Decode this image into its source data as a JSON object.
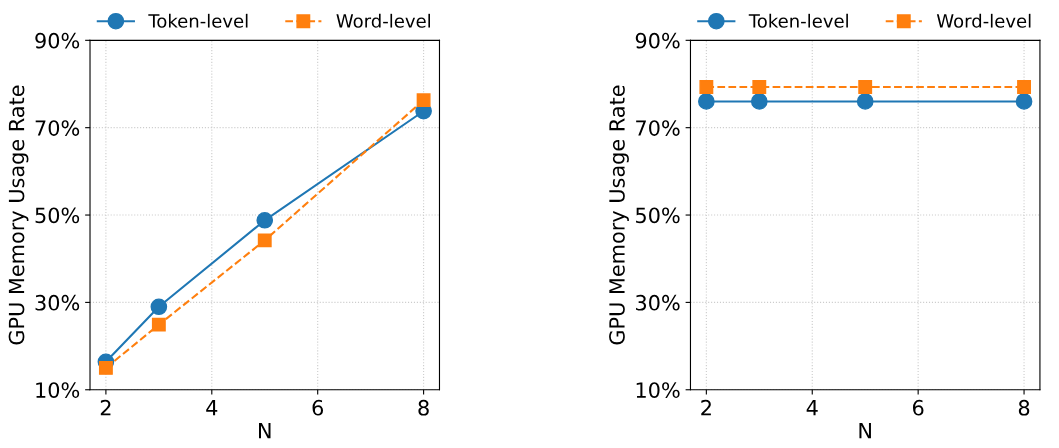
{
  "chart_data": [
    {
      "type": "line",
      "xlabel": "N",
      "ylabel": "GPU Memory Usage Rate",
      "x": [
        2,
        3,
        5,
        8
      ],
      "series": [
        {
          "name": "Token-level",
          "color": "#1f77b4",
          "values": [
            16.4,
            29,
            48.8,
            73.8
          ],
          "marker": "circle",
          "line_style": "solid"
        },
        {
          "name": "Word-level",
          "color": "#ff7f0e",
          "values": [
            15,
            24.9,
            44.2,
            76.3
          ],
          "marker": "square",
          "line_style": "dashed"
        }
      ],
      "xlim": [
        1.7,
        8.3
      ],
      "xticks": [
        2,
        4,
        6,
        8
      ],
      "ylim": [
        10,
        90
      ],
      "yticks": [
        {
          "value": 10,
          "label": "10%"
        },
        {
          "value": 30,
          "label": "30%"
        },
        {
          "value": 50,
          "label": "50%"
        },
        {
          "value": 70,
          "label": "70%"
        },
        {
          "value": 90,
          "label": "90%"
        }
      ],
      "grid": true,
      "legend": "top"
    },
    {
      "type": "line",
      "xlabel": "N",
      "ylabel": "GPU Memory Usage Rate",
      "x": [
        2,
        3,
        5,
        8
      ],
      "series": [
        {
          "name": "Token-level",
          "color": "#1f77b4",
          "values": [
            76,
            76,
            76,
            76
          ],
          "marker": "circle",
          "line_style": "solid"
        },
        {
          "name": "Word-level",
          "color": "#ff7f0e",
          "values": [
            79.3,
            79.3,
            79.3,
            79.3
          ],
          "marker": "square",
          "line_style": "dashed"
        }
      ],
      "xlim": [
        1.7,
        8.3
      ],
      "xticks": [
        2,
        4,
        6,
        8
      ],
      "ylim": [
        10,
        90
      ],
      "yticks": [
        {
          "value": 10,
          "label": "10%"
        },
        {
          "value": 30,
          "label": "30%"
        },
        {
          "value": 50,
          "label": "50%"
        },
        {
          "value": 70,
          "label": "70%"
        },
        {
          "value": 90,
          "label": "90%"
        }
      ],
      "grid": true,
      "legend": "top"
    }
  ]
}
